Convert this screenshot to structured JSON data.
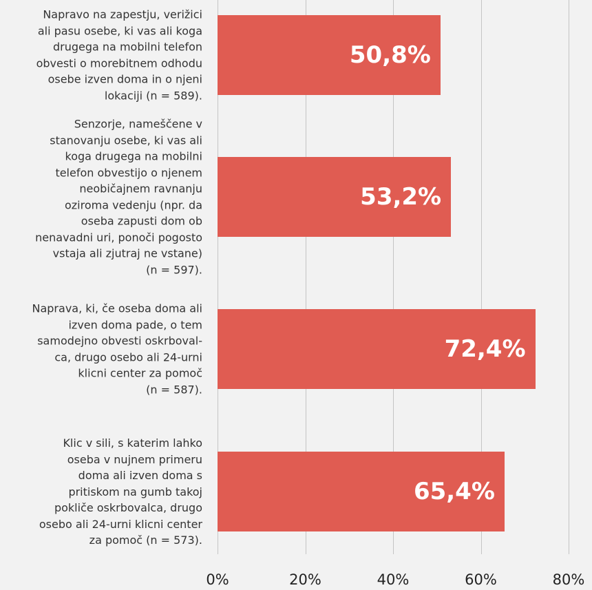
{
  "chart_data": {
    "type": "bar",
    "orientation": "horizontal",
    "categories": [
      "Napravo na zapestju, verižici\nali pasu osebe, ki vas ali koga\ndrugega na mobilni telefon\nobvesti o morebitnem odhodu\nosebe izven doma in o njeni\nlokaciji (n = 589).",
      "Senzorje, nameščene v\nstanovanju osebe, ki vas ali\nkoga drugega na mobilni\ntelefon obvestijo o njenem\nneobičajnem ravnanju\noziroma vedenju (npr. da\noseba zapusti dom ob\nnenavadni uri, ponoči pogosto\nvstaja ali zjutraj ne  vstane)\n(n = 597).",
      "Naprava, ki, če oseba doma ali\nizven doma pade, o tem\nsamodejno obvesti oskrboval-\nca, drugo osebo ali 24-urni\nklicni center za pomoč\n(n = 587).",
      "Klic v sili, s katerim lahko\noseba v nujnem primeru\ndoma ali izven doma s\npritiskom na gumb takoj\npokliče oskrbovalca, drugo\nosebo ali 24-urni klicni center\nza pomoč (n = 573)."
    ],
    "values": [
      50.8,
      53.2,
      72.4,
      65.4
    ],
    "value_labels": [
      "50,8%",
      "53,2%",
      "72,4%",
      "65,4%"
    ],
    "color": "#e05c52",
    "xlim": [
      0,
      80
    ],
    "xticks": [
      {
        "value": 0,
        "label": "0%"
      },
      {
        "value": 20,
        "label": "20%"
      },
      {
        "value": 40,
        "label": "40%"
      },
      {
        "value": 60,
        "label": "60%"
      },
      {
        "value": 80,
        "label": "80%"
      }
    ],
    "grid": true
  }
}
